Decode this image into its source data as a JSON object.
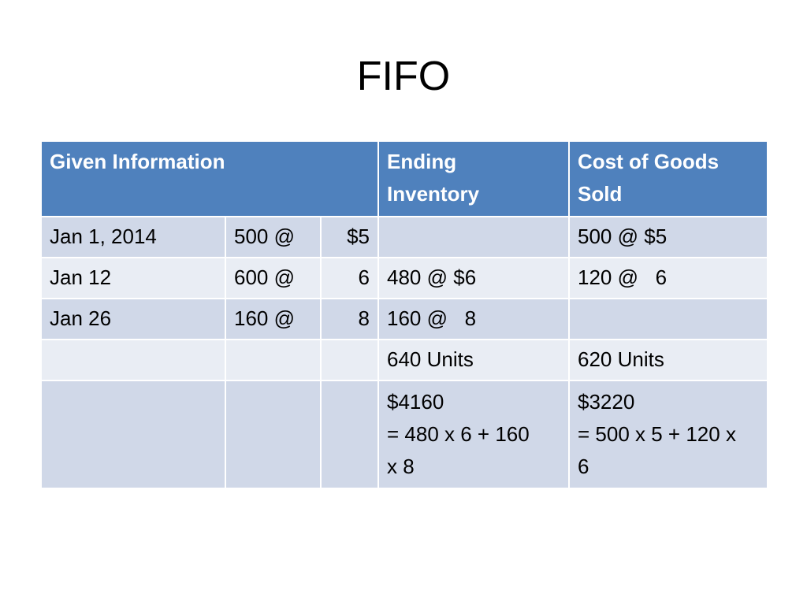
{
  "title": "FIFO",
  "table": {
    "headers": {
      "given": "Given Information",
      "ending": [
        "Ending",
        "Inventory"
      ],
      "cogs": [
        "Cost of Goods",
        "Sold"
      ]
    },
    "rows": [
      {
        "date": "Jan 1, 2014",
        "qty": "500 @",
        "price": "$5",
        "ending": "",
        "cogs": "500 @ $5"
      },
      {
        "date": "Jan 12",
        "qty": "600 @",
        "price": "6",
        "ending": "480 @ $6",
        "cogs": "120 @   6"
      },
      {
        "date": "Jan 26",
        "qty": "160 @",
        "price": "8",
        "ending": "160 @   8",
        "cogs": ""
      },
      {
        "date": "",
        "qty": "",
        "price": "",
        "ending": "640 Units",
        "cogs": "620 Units"
      }
    ],
    "total_row": {
      "ending": [
        "$4160",
        "= 480 x 6 + 160",
        "x 8"
      ],
      "cogs": [
        "$3220",
        "= 500 x 5 + 120 x",
        "6"
      ]
    }
  },
  "colors": {
    "header": "#4f81bd",
    "band_dark": "#d0d8e8",
    "band_light": "#e9edf4"
  }
}
